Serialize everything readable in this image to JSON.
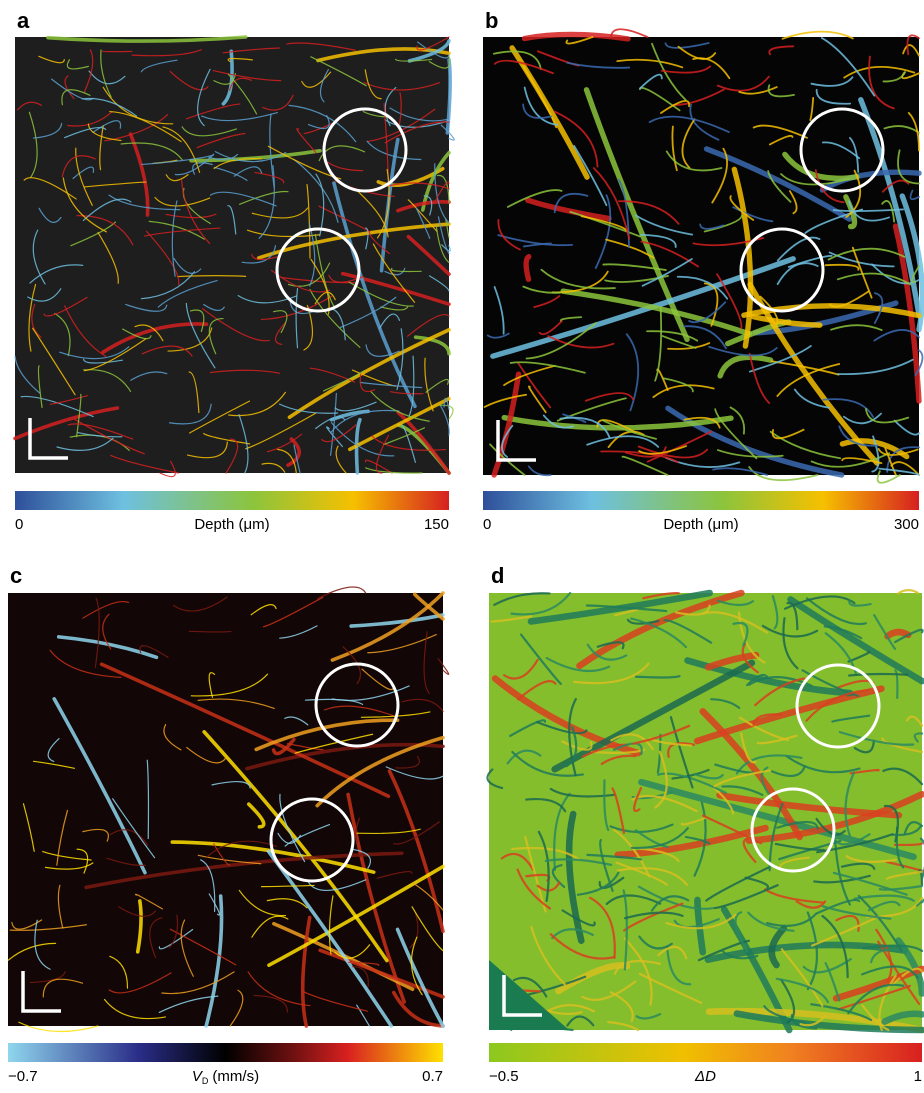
{
  "panels": [
    {
      "label": "a",
      "colorbar": {
        "min": "0",
        "title": "Depth (μm)",
        "max": "150"
      }
    },
    {
      "label": "b",
      "colorbar": {
        "min": "0",
        "title": "Depth (μm)",
        "max": "300"
      }
    },
    {
      "label": "c",
      "colorbar": {
        "min": "−0.7",
        "title_main": "V",
        "title_sub": "D",
        "title_unit": "(mm/s)",
        "max": "0.7"
      }
    },
    {
      "label": "d",
      "colorbar": {
        "min": "−0.5",
        "title": "ΔD",
        "max": "1"
      }
    }
  ]
}
